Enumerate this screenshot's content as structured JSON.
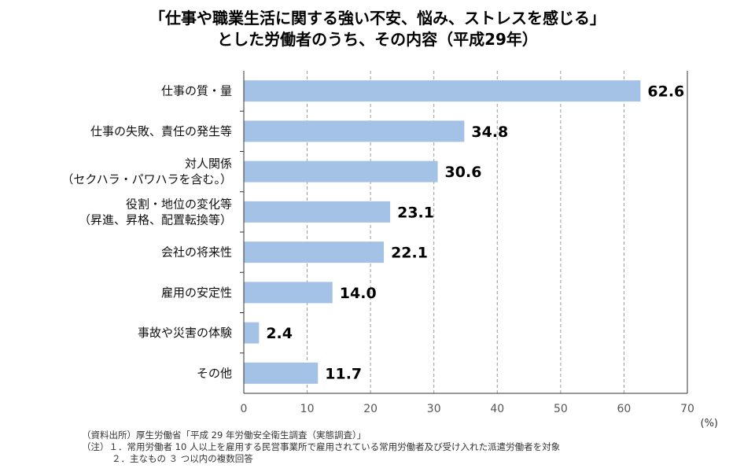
{
  "chart_data": {
    "type": "bar",
    "orientation": "horizontal",
    "title": [
      "「仕事や職業生活に関する強い不安、悩み、ストレスを感じる」",
      "とした労働者のうち、その内容（平成29年）"
    ],
    "categories": [
      [
        "仕事の質・量"
      ],
      [
        "仕事の失敗、責任の発生等"
      ],
      [
        "対人関係",
        "（セクハラ・パワハラを含む。）"
      ],
      [
        "役割・地位の変化等",
        "（昇進、昇格、配置転換等）"
      ],
      [
        "会社の将来性"
      ],
      [
        "雇用の安定性"
      ],
      [
        "事故や災害の体験"
      ],
      [
        "その他"
      ]
    ],
    "values": [
      62.6,
      34.8,
      30.6,
      23.1,
      22.1,
      14.0,
      2.4,
      11.7
    ],
    "value_labels": [
      "62.6",
      "34.8",
      "30.6",
      "23.1",
      "22.1",
      "14.0",
      "2.4",
      "11.7"
    ],
    "xlim": [
      0,
      70
    ],
    "xticks": [
      0,
      10,
      20,
      30,
      40,
      50,
      60,
      70
    ],
    "xunit": "(%)",
    "grid": true,
    "bar_color": "#a4c2e6"
  },
  "notes": {
    "source": "（資料出所）厚生労働省「平成 29 年労働安全衛生調査（実態調査）」",
    "note1": "（注）１．常用労働者 10 人以上を雇用する民営事業所で雇用されている常用労働者及び受け入れた派遣労働者を対象",
    "note2": "２．主なもの ３ つ以内の複数回答"
  }
}
